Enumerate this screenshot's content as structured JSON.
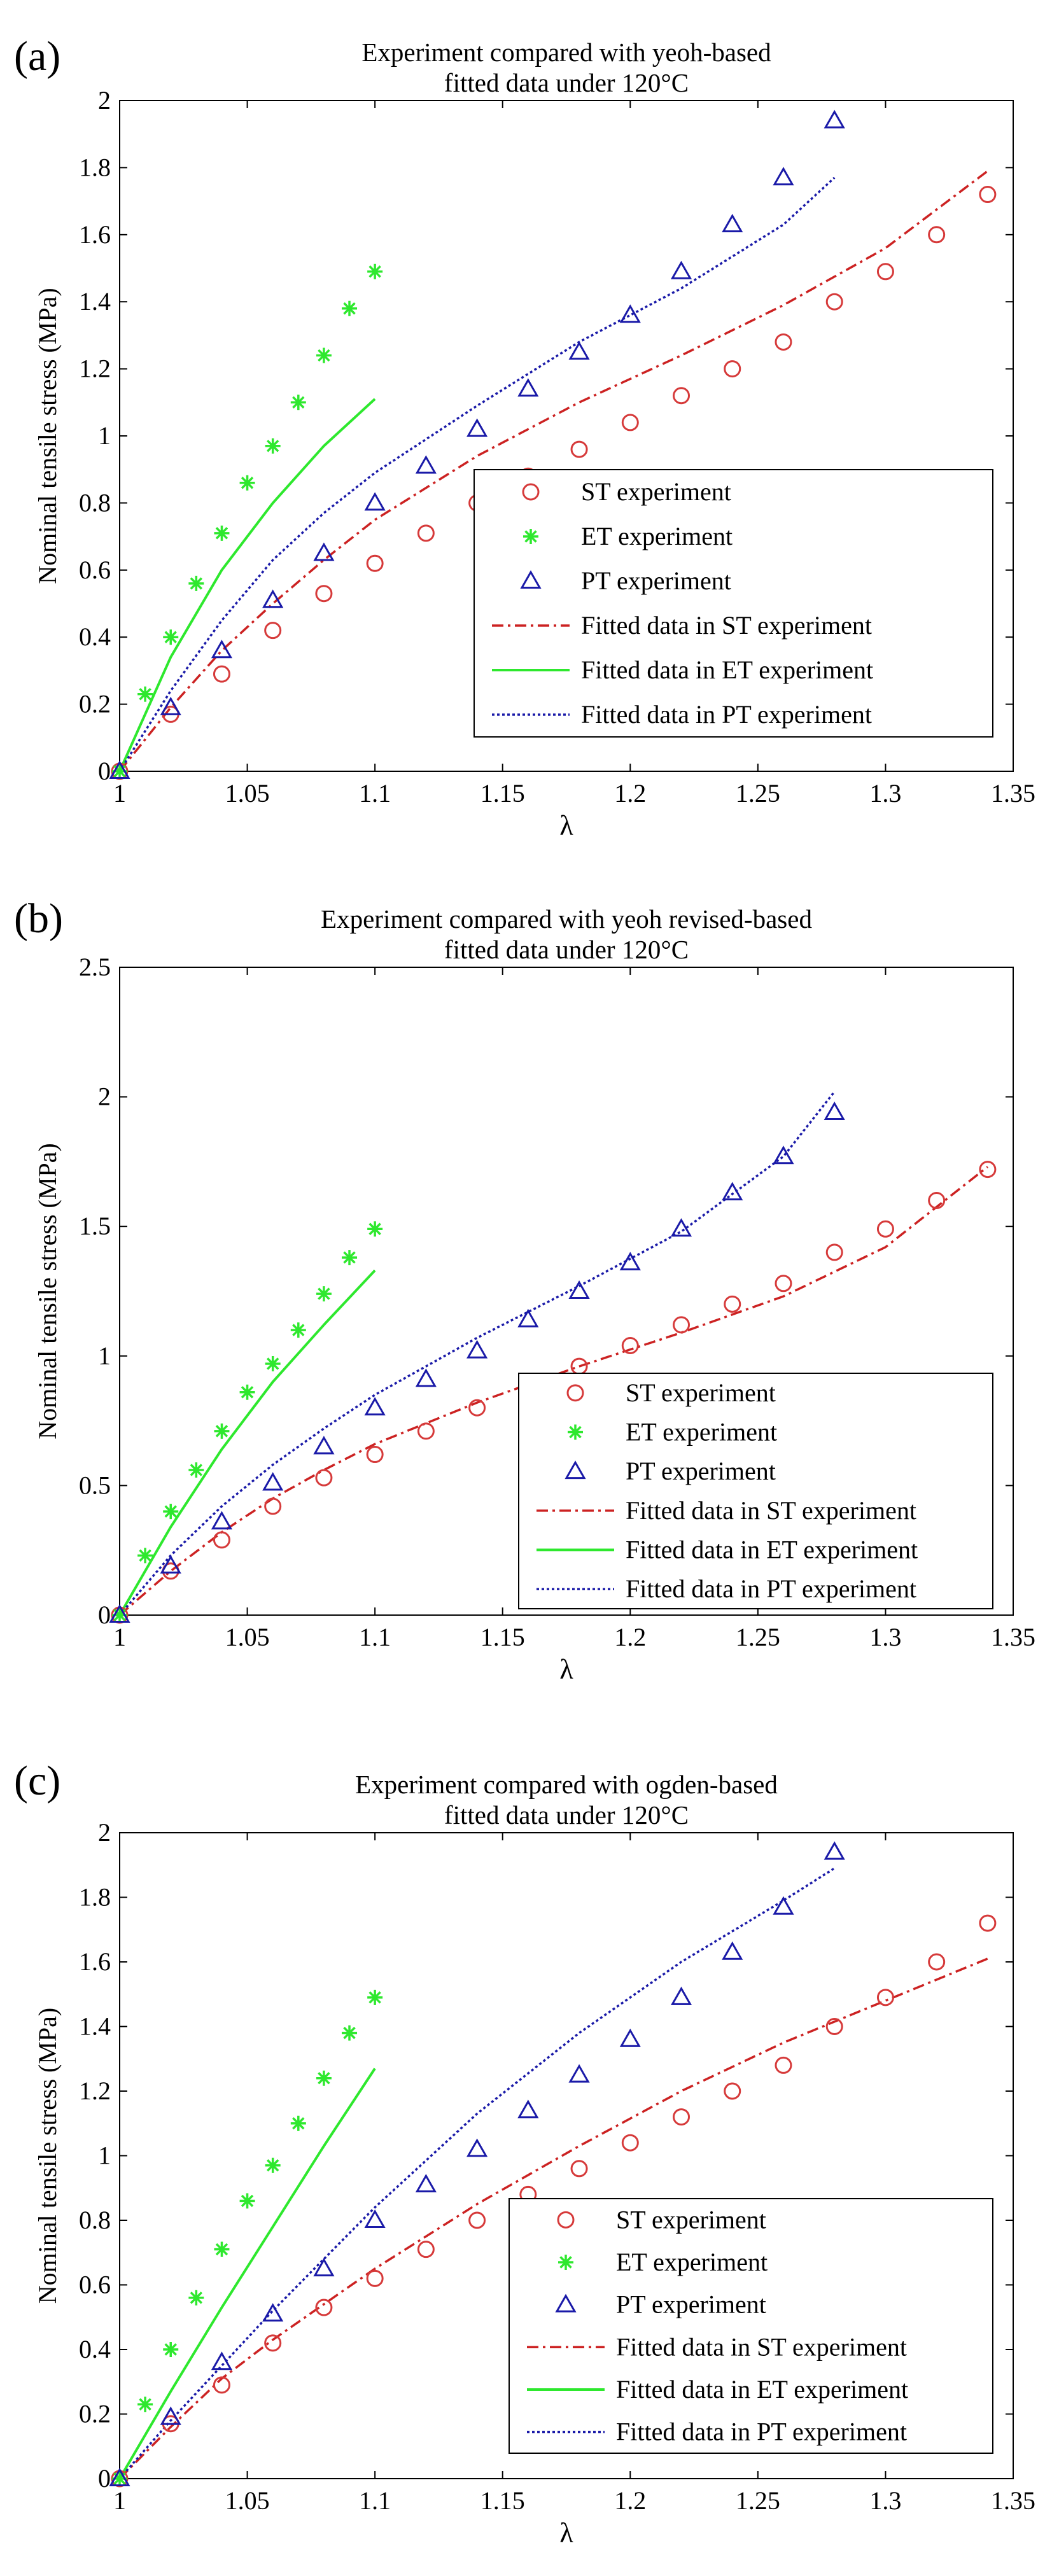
{
  "figure": {
    "panel_labels": [
      "(a)",
      "(b)",
      "(c)"
    ]
  },
  "chart_data": [
    {
      "panel": "(a)",
      "type": "scatter",
      "title_lines": [
        "Experiment compared with yeoh-based",
        "fitted data under 120°C"
      ],
      "xlabel": "λ",
      "ylabel": "Nominal tensile stress (MPa)",
      "xlim": [
        1,
        1.35
      ],
      "ylim": [
        0,
        2
      ],
      "xticks": [
        1,
        1.05,
        1.1,
        1.15,
        1.2,
        1.25,
        1.3,
        1.35
      ],
      "xtick_labels": [
        "1",
        "1.05",
        "1.1",
        "1.15",
        "1.2",
        "1.25",
        "1.3",
        "1.35"
      ],
      "yticks": [
        0,
        0.2,
        0.4,
        0.6,
        0.8,
        1,
        1.2,
        1.4,
        1.6,
        1.8,
        2
      ],
      "ytick_labels": [
        "0",
        "0.2",
        "0.4",
        "0.6",
        "0.8",
        "1",
        "1.2",
        "1.4",
        "1.6",
        "1.8",
        "2"
      ],
      "legend_position": "center-right",
      "series": [
        {
          "name": "ST experiment",
          "kind": "marker",
          "marker": "circle",
          "color": "#d63a3a",
          "x": [
            1,
            1.02,
            1.04,
            1.06,
            1.08,
            1.1,
            1.12,
            1.14,
            1.16,
            1.18,
            1.2,
            1.22,
            1.24,
            1.26,
            1.28,
            1.3,
            1.32,
            1.34
          ],
          "y": [
            0,
            0.17,
            0.29,
            0.42,
            0.53,
            0.62,
            0.71,
            0.8,
            0.88,
            0.96,
            1.04,
            1.12,
            1.2,
            1.28,
            1.4,
            1.49,
            1.6,
            1.72
          ]
        },
        {
          "name": "ET experiment",
          "kind": "marker",
          "marker": "asterisk",
          "color": "#2ee82e",
          "x": [
            1,
            1.01,
            1.02,
            1.03,
            1.04,
            1.05,
            1.06,
            1.07,
            1.08,
            1.09,
            1.1
          ],
          "y": [
            0,
            0.23,
            0.4,
            0.56,
            0.71,
            0.86,
            0.97,
            1.1,
            1.24,
            1.38,
            1.49
          ]
        },
        {
          "name": "PT experiment",
          "kind": "marker",
          "marker": "triangle",
          "color": "#1a1aa8",
          "x": [
            1,
            1.02,
            1.04,
            1.06,
            1.08,
            1.1,
            1.12,
            1.14,
            1.16,
            1.18,
            1.2,
            1.22,
            1.24,
            1.26,
            1.28
          ],
          "y": [
            0,
            0.19,
            0.36,
            0.51,
            0.65,
            0.8,
            0.91,
            1.02,
            1.14,
            1.25,
            1.36,
            1.49,
            1.63,
            1.77,
            1.94
          ]
        },
        {
          "name": "Fitted data in ST experiment",
          "kind": "line",
          "dash": "dashdot",
          "color": "#cc2222",
          "x": [
            1,
            1.02,
            1.04,
            1.06,
            1.08,
            1.1,
            1.14,
            1.18,
            1.22,
            1.26,
            1.3,
            1.34
          ],
          "y": [
            0,
            0.19,
            0.36,
            0.5,
            0.63,
            0.75,
            0.94,
            1.1,
            1.24,
            1.39,
            1.56,
            1.79
          ]
        },
        {
          "name": "Fitted data in ET experiment",
          "kind": "line",
          "dash": "solid",
          "color": "#2ee82e",
          "x": [
            1,
            1.02,
            1.04,
            1.06,
            1.08,
            1.1
          ],
          "y": [
            0,
            0.34,
            0.6,
            0.8,
            0.97,
            1.11
          ]
        },
        {
          "name": "Fitted data in PT experiment",
          "kind": "line",
          "dash": "dotted",
          "color": "#1a1aa8",
          "x": [
            1,
            1.02,
            1.04,
            1.06,
            1.08,
            1.1,
            1.14,
            1.18,
            1.22,
            1.26,
            1.28
          ],
          "y": [
            0,
            0.24,
            0.45,
            0.63,
            0.77,
            0.89,
            1.09,
            1.28,
            1.44,
            1.63,
            1.77
          ]
        }
      ]
    },
    {
      "panel": "(b)",
      "type": "scatter",
      "title_lines": [
        "Experiment compared with yeoh revised-based",
        "fitted data under 120°C"
      ],
      "xlabel": "λ",
      "ylabel": "Nominal tensile stress (MPa)",
      "xlim": [
        1,
        1.35
      ],
      "ylim": [
        0,
        2.5
      ],
      "xticks": [
        1,
        1.05,
        1.1,
        1.15,
        1.2,
        1.25,
        1.3,
        1.35
      ],
      "xtick_labels": [
        "1",
        "1.05",
        "1.1",
        "1.15",
        "1.2",
        "1.25",
        "1.3",
        "1.35"
      ],
      "yticks": [
        0,
        0.5,
        1,
        1.5,
        2,
        2.5
      ],
      "ytick_labels": [
        "0",
        "0.5",
        "1",
        "1.5",
        "2",
        "2.5"
      ],
      "legend_position": "bottom-right",
      "series": [
        {
          "name": "ST experiment",
          "kind": "marker",
          "marker": "circle",
          "color": "#d63a3a",
          "x": [
            1,
            1.02,
            1.04,
            1.06,
            1.08,
            1.1,
            1.12,
            1.14,
            1.16,
            1.18,
            1.2,
            1.22,
            1.24,
            1.26,
            1.28,
            1.3,
            1.32,
            1.34
          ],
          "y": [
            0,
            0.17,
            0.29,
            0.42,
            0.53,
            0.62,
            0.71,
            0.8,
            0.88,
            0.96,
            1.04,
            1.12,
            1.2,
            1.28,
            1.4,
            1.49,
            1.6,
            1.72
          ]
        },
        {
          "name": "ET experiment",
          "kind": "marker",
          "marker": "asterisk",
          "color": "#2ee82e",
          "x": [
            1,
            1.01,
            1.02,
            1.03,
            1.04,
            1.05,
            1.06,
            1.07,
            1.08,
            1.09,
            1.1
          ],
          "y": [
            0,
            0.23,
            0.4,
            0.56,
            0.71,
            0.86,
            0.97,
            1.1,
            1.24,
            1.38,
            1.49
          ]
        },
        {
          "name": "PT experiment",
          "kind": "marker",
          "marker": "triangle",
          "color": "#1a1aa8",
          "x": [
            1,
            1.02,
            1.04,
            1.06,
            1.08,
            1.1,
            1.12,
            1.14,
            1.16,
            1.18,
            1.2,
            1.22,
            1.24,
            1.26,
            1.28
          ],
          "y": [
            0,
            0.19,
            0.36,
            0.51,
            0.65,
            0.8,
            0.91,
            1.02,
            1.14,
            1.25,
            1.36,
            1.49,
            1.63,
            1.77,
            1.94
          ]
        },
        {
          "name": "Fitted data in ST experiment",
          "kind": "line",
          "dash": "dashdot",
          "color": "#cc2222",
          "x": [
            1,
            1.02,
            1.04,
            1.06,
            1.08,
            1.1,
            1.14,
            1.18,
            1.22,
            1.26,
            1.3,
            1.34
          ],
          "y": [
            0,
            0.17,
            0.32,
            0.45,
            0.56,
            0.66,
            0.82,
            0.96,
            1.09,
            1.23,
            1.42,
            1.73
          ]
        },
        {
          "name": "Fitted data in ET experiment",
          "kind": "line",
          "dash": "solid",
          "color": "#2ee82e",
          "x": [
            1,
            1.02,
            1.04,
            1.06,
            1.08,
            1.1
          ],
          "y": [
            0,
            0.34,
            0.64,
            0.9,
            1.12,
            1.33
          ]
        },
        {
          "name": "Fitted data in PT experiment",
          "kind": "line",
          "dash": "dotted",
          "color": "#1a1aa8",
          "x": [
            1,
            1.02,
            1.04,
            1.06,
            1.08,
            1.1,
            1.14,
            1.18,
            1.22,
            1.26,
            1.28
          ],
          "y": [
            0,
            0.23,
            0.42,
            0.58,
            0.72,
            0.85,
            1.07,
            1.27,
            1.48,
            1.77,
            2.02
          ]
        }
      ]
    },
    {
      "panel": "(c)",
      "type": "scatter",
      "title_lines": [
        "Experiment compared with ogden-based",
        "fitted data under 120°C"
      ],
      "xlabel": "λ",
      "ylabel": "Nominal tensile stress (MPa)",
      "xlim": [
        1,
        1.35
      ],
      "ylim": [
        0,
        2
      ],
      "xticks": [
        1,
        1.05,
        1.1,
        1.15,
        1.2,
        1.25,
        1.3,
        1.35
      ],
      "xtick_labels": [
        "1",
        "1.05",
        "1.1",
        "1.15",
        "1.2",
        "1.25",
        "1.3",
        "1.35"
      ],
      "yticks": [
        0,
        0.2,
        0.4,
        0.6,
        0.8,
        1,
        1.2,
        1.4,
        1.6,
        1.8,
        2
      ],
      "ytick_labels": [
        "0",
        "0.2",
        "0.4",
        "0.6",
        "0.8",
        "1",
        "1.2",
        "1.4",
        "1.6",
        "1.8",
        "2"
      ],
      "legend_position": "bottom-right",
      "series": [
        {
          "name": "ST experiment",
          "kind": "marker",
          "marker": "circle",
          "color": "#d63a3a",
          "x": [
            1,
            1.02,
            1.04,
            1.06,
            1.08,
            1.1,
            1.12,
            1.14,
            1.16,
            1.18,
            1.2,
            1.22,
            1.24,
            1.26,
            1.28,
            1.3,
            1.32,
            1.34
          ],
          "y": [
            0,
            0.17,
            0.29,
            0.42,
            0.53,
            0.62,
            0.71,
            0.8,
            0.88,
            0.96,
            1.04,
            1.12,
            1.2,
            1.28,
            1.4,
            1.49,
            1.6,
            1.72
          ]
        },
        {
          "name": "ET experiment",
          "kind": "marker",
          "marker": "asterisk",
          "color": "#2ee82e",
          "x": [
            1,
            1.01,
            1.02,
            1.03,
            1.04,
            1.05,
            1.06,
            1.07,
            1.08,
            1.09,
            1.1
          ],
          "y": [
            0,
            0.23,
            0.4,
            0.56,
            0.71,
            0.86,
            0.97,
            1.1,
            1.24,
            1.38,
            1.49
          ]
        },
        {
          "name": "PT experiment",
          "kind": "marker",
          "marker": "triangle",
          "color": "#1a1aa8",
          "x": [
            1,
            1.02,
            1.04,
            1.06,
            1.08,
            1.1,
            1.12,
            1.14,
            1.16,
            1.18,
            1.2,
            1.22,
            1.24,
            1.26,
            1.28
          ],
          "y": [
            0,
            0.19,
            0.36,
            0.51,
            0.65,
            0.8,
            0.91,
            1.02,
            1.14,
            1.25,
            1.36,
            1.49,
            1.63,
            1.77,
            1.94
          ]
        },
        {
          "name": "Fitted data in ST experiment",
          "kind": "line",
          "dash": "dashdot",
          "color": "#cc2222",
          "x": [
            1,
            1.02,
            1.04,
            1.06,
            1.08,
            1.1,
            1.14,
            1.18,
            1.22,
            1.26,
            1.3,
            1.34
          ],
          "y": [
            0,
            0.16,
            0.31,
            0.43,
            0.54,
            0.65,
            0.85,
            1.03,
            1.2,
            1.35,
            1.48,
            1.61
          ]
        },
        {
          "name": "Fitted data in ET experiment",
          "kind": "line",
          "dash": "solid",
          "color": "#2ee82e",
          "x": [
            1,
            1.02,
            1.04,
            1.06,
            1.08,
            1.1
          ],
          "y": [
            0,
            0.27,
            0.53,
            0.78,
            1.03,
            1.27
          ]
        },
        {
          "name": "Fitted data in PT experiment",
          "kind": "line",
          "dash": "dotted",
          "color": "#1a1aa8",
          "x": [
            1,
            1.02,
            1.04,
            1.06,
            1.08,
            1.1,
            1.14,
            1.18,
            1.22,
            1.26,
            1.28
          ],
          "y": [
            0,
            0.18,
            0.35,
            0.52,
            0.68,
            0.84,
            1.13,
            1.38,
            1.6,
            1.79,
            1.89
          ]
        }
      ]
    }
  ]
}
